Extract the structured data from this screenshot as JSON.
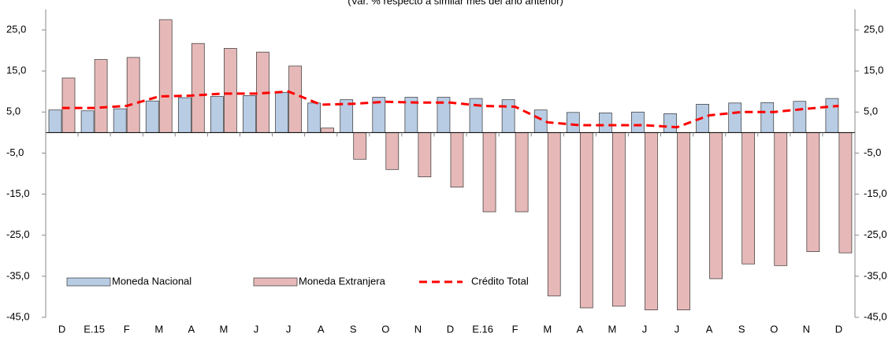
{
  "chart_data": {
    "type": "bar",
    "subtitle": "(Var. % respecto a similar mes del año anterior)",
    "categories": [
      "D",
      "E.15",
      "F",
      "M",
      "A",
      "M",
      "J",
      "J",
      "A",
      "S",
      "O",
      "N",
      "D",
      "E.16",
      "F",
      "M",
      "A",
      "M",
      "J",
      "J",
      "A",
      "S",
      "O",
      "N",
      "D"
    ],
    "series": [
      {
        "name": "Moneda Nacional",
        "color": "#b8cce4",
        "values": [
          5.5,
          5.3,
          5.8,
          7.7,
          8.5,
          8.8,
          9.0,
          9.8,
          7.2,
          8.0,
          8.6,
          8.6,
          8.6,
          8.3,
          8.0,
          5.5,
          4.9,
          4.8,
          5.0,
          4.6,
          6.9,
          7.2,
          7.3,
          7.6,
          8.3
        ]
      },
      {
        "name": "Moneda Extranjera",
        "color": "#e6b9b8",
        "values": [
          13.3,
          17.8,
          18.3,
          27.5,
          21.7,
          20.5,
          19.6,
          16.2,
          1.1,
          -6.5,
          -9.0,
          -10.8,
          -13.3,
          -19.3,
          -19.3,
          -39.8,
          -42.7,
          -42.3,
          -43.2,
          -43.2,
          -35.6,
          -32.0,
          -32.4,
          -29.0,
          -29.3
        ]
      },
      {
        "name": "Crédito Total",
        "color": "#ff0000",
        "type": "line",
        "values": [
          6.0,
          6.0,
          6.5,
          8.8,
          9.0,
          9.5,
          9.5,
          10.0,
          6.8,
          7.0,
          7.5,
          7.3,
          7.3,
          6.5,
          6.3,
          2.5,
          1.8,
          1.8,
          1.8,
          1.3,
          4.2,
          5.0,
          5.0,
          5.8,
          6.5
        ]
      }
    ],
    "ylim": [
      -45,
      30
    ],
    "yticks": [
      {
        "value": -45,
        "label": "-45,0"
      },
      {
        "value": -35,
        "label": "-35,0"
      },
      {
        "value": -25,
        "label": "-25,0"
      },
      {
        "value": -15,
        "label": "-15,0"
      },
      {
        "value": -5,
        "label": "-5,0"
      },
      {
        "value": 5,
        "label": "5,0"
      },
      {
        "value": 15,
        "label": "15,0"
      },
      {
        "value": 25,
        "label": "25,0"
      }
    ],
    "y2lim": [
      -45,
      30
    ],
    "y2ticks": [
      {
        "value": -45,
        "label": "-45,0"
      },
      {
        "value": -35,
        "label": "-35,0"
      },
      {
        "value": -25,
        "label": "-25,0"
      },
      {
        "value": -15,
        "label": "-15,0"
      },
      {
        "value": -5,
        "label": "-5,0"
      },
      {
        "value": 5,
        "label": "5,0"
      },
      {
        "value": 15,
        "label": "15,0"
      },
      {
        "value": 25,
        "label": "25,0"
      }
    ],
    "legend": "lower-left"
  }
}
